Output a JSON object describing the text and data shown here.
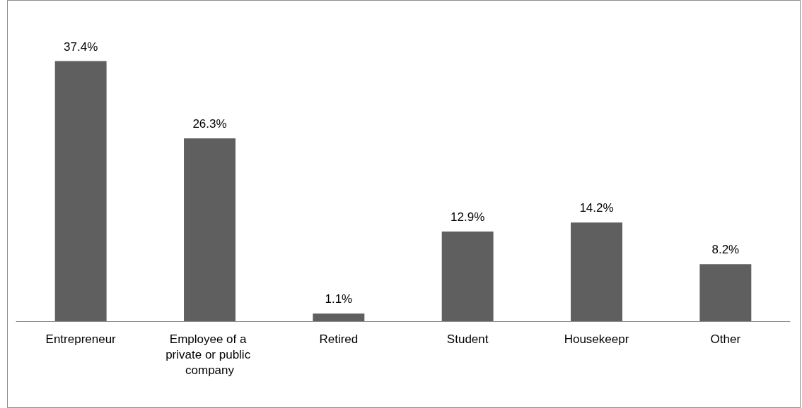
{
  "chart_data": {
    "type": "bar",
    "categories": [
      "Entrepreneur",
      "Employee of a private or public company",
      "Retired",
      "Student",
      "Housekeepr",
      "Other"
    ],
    "values": [
      37.4,
      26.3,
      1.1,
      12.9,
      14.2,
      8.2
    ],
    "value_labels": [
      "37.4%",
      "26.3%",
      "1.1%",
      "12.9%",
      "14.2%",
      "8.2%"
    ],
    "color": "#5f5f5f"
  }
}
